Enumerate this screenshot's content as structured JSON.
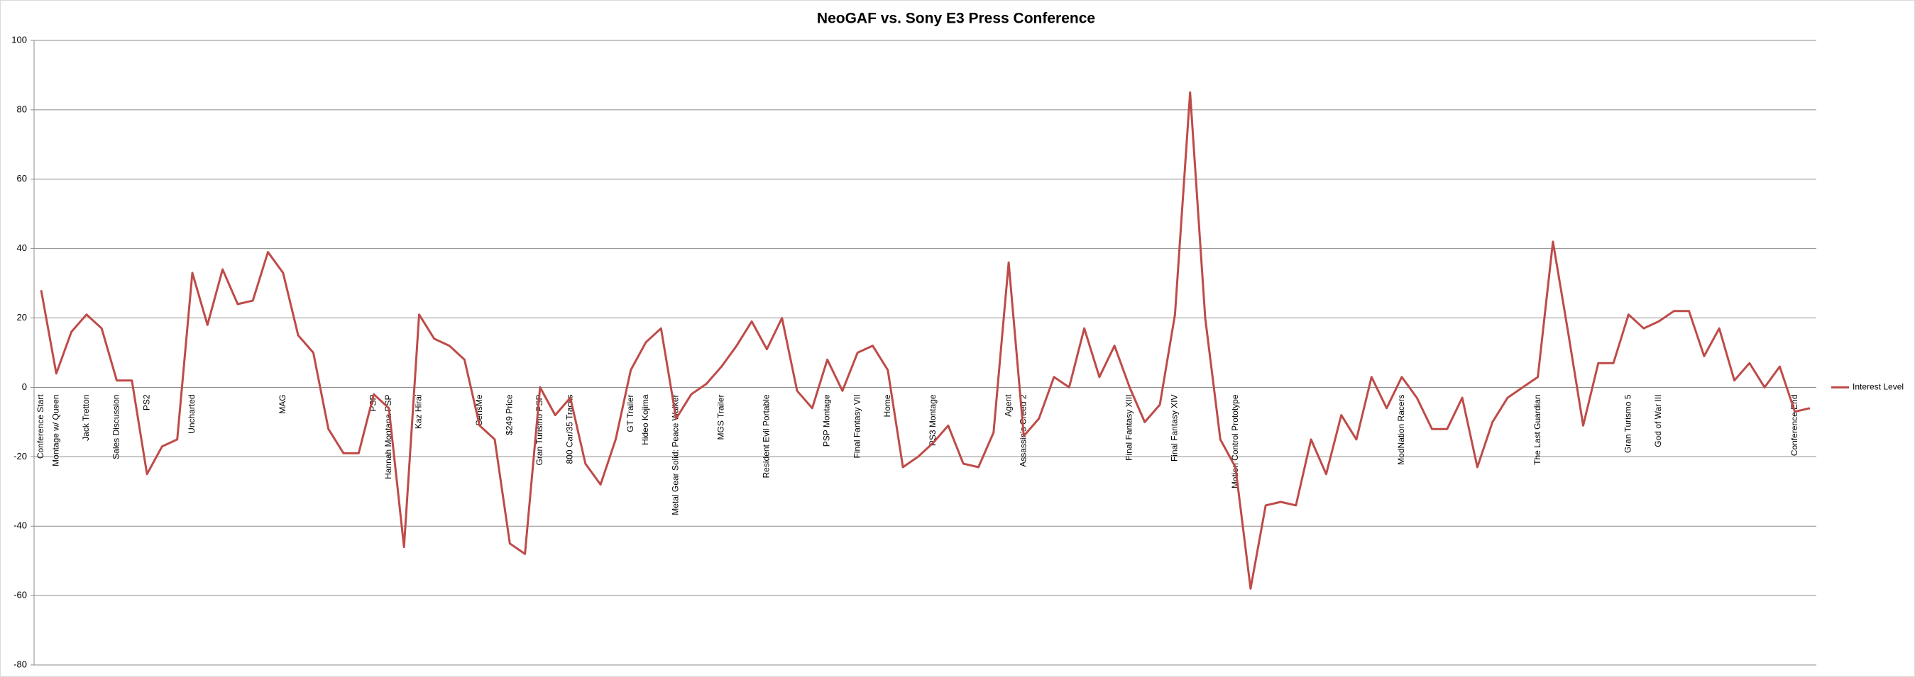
{
  "chart_data": {
    "type": "line",
    "title": "NeoGAF vs. Sony E3 Press Conference",
    "categories": [
      "Conference Start",
      "Montage w/ Queen",
      null,
      "Jack Tretton",
      null,
      "Sales Discussion",
      null,
      "PS2",
      null,
      null,
      "Uncharted",
      null,
      null,
      null,
      null,
      null,
      "MAG",
      null,
      null,
      null,
      null,
      null,
      "PSP",
      "Hannah Montana PSP",
      null,
      "Kaz Hirai",
      null,
      null,
      null,
      "SensMe",
      null,
      "$249 Price",
      null,
      "Gran Turismo PSP",
      null,
      "800 Car/35 Tracks",
      null,
      null,
      null,
      "GT Trailer",
      "Hideo Kojima",
      null,
      "Metal Gear Solid: Peace Walker",
      null,
      null,
      "MGS Trailer",
      null,
      null,
      "Resident Evil Portable",
      null,
      null,
      null,
      "PSP Montage",
      null,
      "Final Fantasy VII",
      null,
      "Home",
      null,
      null,
      "PS3 Montage",
      null,
      null,
      null,
      null,
      "Agent",
      "Assassin's Creed 2",
      null,
      null,
      null,
      null,
      null,
      null,
      "Final Fantasy XIII",
      null,
      null,
      "Final Fantasy XIV",
      null,
      null,
      null,
      "Motion Control Prototype",
      null,
      null,
      null,
      null,
      null,
      null,
      null,
      null,
      null,
      null,
      "ModNation Racers",
      null,
      null,
      null,
      null,
      null,
      null,
      null,
      null,
      "The Last Guardian",
      null,
      null,
      null,
      null,
      null,
      "Gran Turismo 5",
      null,
      "God of War III",
      null,
      null,
      null,
      null,
      null,
      null,
      null,
      null,
      "Conference End",
      null
    ],
    "series": [
      {
        "name": "Interest Level",
        "color": "#be4b48",
        "values": [
          28,
          4,
          16,
          21,
          17,
          2,
          2,
          -25,
          -17,
          -15,
          33,
          18,
          34,
          24,
          25,
          39,
          33,
          15,
          10,
          -12,
          -19,
          -19,
          -2,
          -6,
          -46,
          21,
          14,
          12,
          8,
          -11,
          -15,
          -45,
          -48,
          0,
          -8,
          -3,
          -22,
          -28,
          -15,
          5,
          13,
          17,
          -9,
          -2,
          1,
          6,
          12,
          19,
          11,
          20,
          -1,
          -6,
          8,
          -1,
          10,
          12,
          5,
          -23,
          -20,
          -16,
          -11,
          -22,
          -23,
          -13,
          36,
          -14,
          -9,
          3,
          0,
          17,
          3,
          12,
          0,
          -10,
          -5,
          21,
          85,
          20,
          -15,
          -23,
          -58,
          -34,
          -33,
          -34,
          -15,
          -25,
          -8,
          -15,
          3,
          -6,
          3,
          -3,
          -12,
          -12,
          -3,
          -23,
          -10,
          -3,
          0,
          3,
          42,
          16,
          -11,
          7,
          7,
          21,
          17,
          19,
          22,
          22,
          9,
          17,
          2,
          7,
          0,
          6,
          -7,
          -6
        ]
      }
    ],
    "ylim": [
      -80,
      100
    ],
    "yticks": [
      -80,
      -60,
      -40,
      -20,
      0,
      20,
      40,
      60,
      80,
      100
    ],
    "grid": true,
    "legend": "right"
  }
}
